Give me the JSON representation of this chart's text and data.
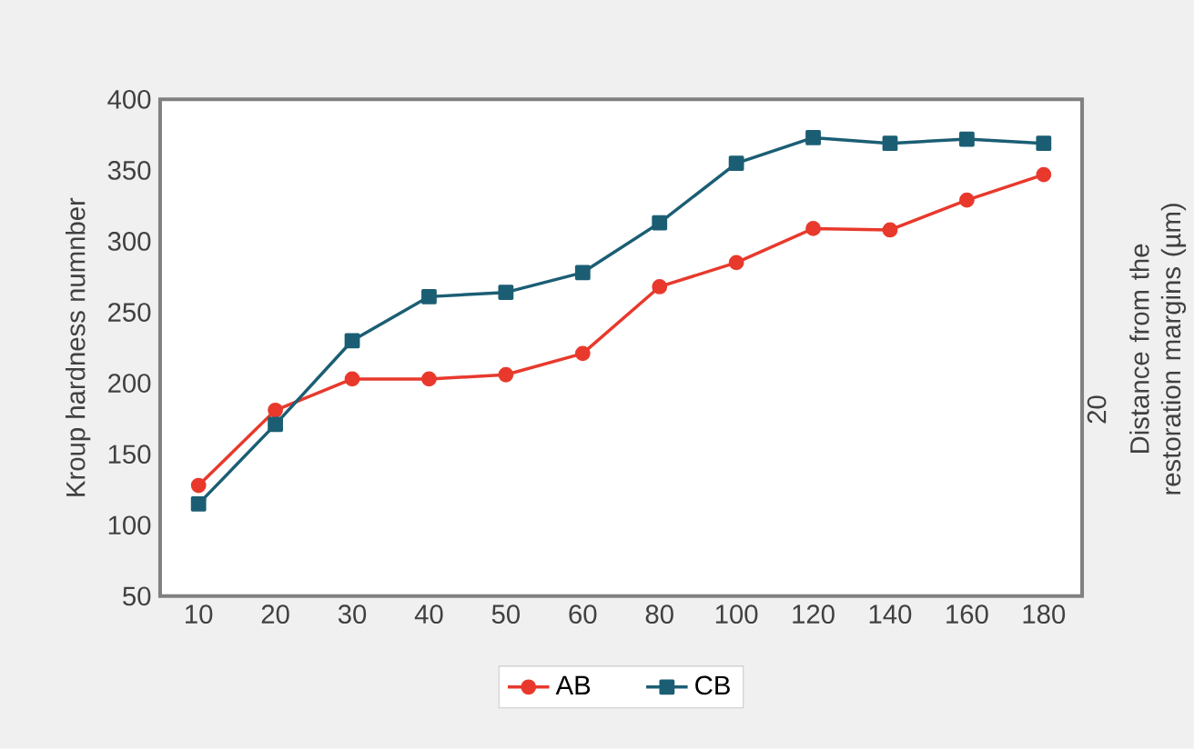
{
  "chart_data": {
    "type": "line",
    "ylabel": "Kroup hardness numnber",
    "y2label": "Distance from the restoration margins (µm)",
    "annotations": [
      "20"
    ],
    "categories": [
      "10",
      "20",
      "30",
      "40",
      "50",
      "60",
      "80",
      "100",
      "120",
      "140",
      "160",
      "180"
    ],
    "series": [
      {
        "name": "AB",
        "color": "#e8392c",
        "marker": "circle",
        "values": [
          128,
          181,
          203,
          203,
          206,
          221,
          268,
          285,
          309,
          308,
          329,
          347
        ]
      },
      {
        "name": "CB",
        "color": "#1b5e74",
        "marker": "square",
        "values": [
          115,
          171,
          230,
          261,
          264,
          278,
          313,
          355,
          373,
          369,
          372,
          369
        ]
      }
    ],
    "ylim": [
      50,
      400
    ],
    "yticks": [
      50,
      100,
      150,
      200,
      250,
      300,
      350,
      400
    ],
    "grid": false,
    "legend": "bottom"
  }
}
